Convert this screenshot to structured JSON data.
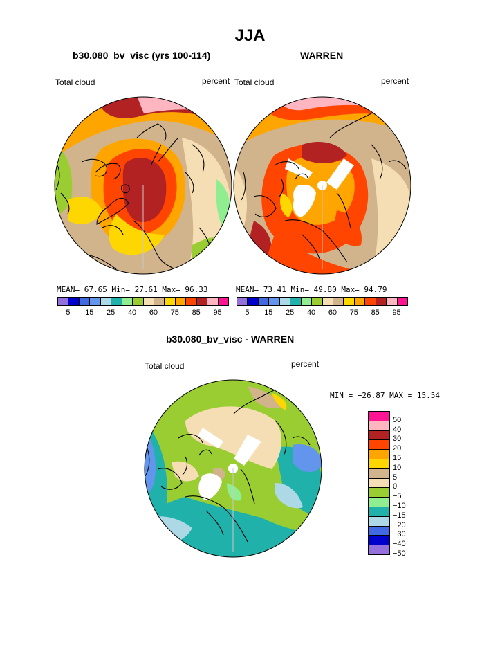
{
  "main_title": "JJA",
  "panel_left": {
    "title": "b30.080_bv_visc (yrs 100-114)",
    "left_label": "Total cloud",
    "right_label": "percent",
    "stats": "MEAN=  67.65  Min=  27.61  Max=  96.33"
  },
  "panel_right": {
    "title": "WARREN",
    "left_label": "Total cloud",
    "right_label": "percent",
    "stats": "MEAN=  73.41  Min=  49.80  Max=  94.79"
  },
  "panel_diff": {
    "title": "b30.080_bv_visc - WARREN",
    "left_label": "Total cloud",
    "right_label": "percent",
    "stats": "MIN = −26.87 MAX =  15.54"
  },
  "top_colorbar": {
    "colors": [
      "#9370db",
      "#0000cd",
      "#4169e1",
      "#6495ed",
      "#add8e6",
      "#20b2aa",
      "#90ee90",
      "#9acd32",
      "#f5deb3",
      "#d2b48c",
      "#ffd700",
      "#ffa500",
      "#ff4500",
      "#b22222",
      "#ffb6c1",
      "#ff1493"
    ],
    "tick_labels": [
      "5",
      "15",
      "25",
      "40",
      "60",
      "75",
      "85",
      "95"
    ]
  },
  "diff_colorbar": {
    "colors": [
      "#9370db",
      "#0000cd",
      "#4169e1",
      "#add8e6",
      "#20b2aa",
      "#90ee90",
      "#9acd32",
      "#f5deb3",
      "#d2b48c",
      "#ffd700",
      "#ffa500",
      "#ff4500",
      "#b22222",
      "#ffb6c1",
      "#ff1493"
    ],
    "tick_labels": [
      "50",
      "40",
      "30",
      "20",
      "15",
      "10",
      "5",
      "0",
      "−5",
      "−10",
      "−15",
      "−20",
      "−30",
      "−40",
      "−50"
    ]
  }
}
